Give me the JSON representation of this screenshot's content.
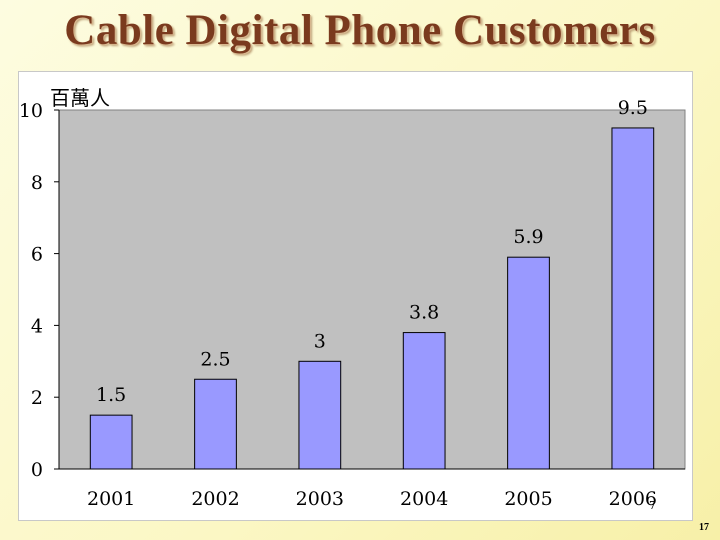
{
  "title": "Cable Digital Phone Customers",
  "page_number": "17",
  "footnote_marker": "7",
  "colors": {
    "title": "#7a3a1e",
    "plot_background": "#c0c0c0",
    "bar_fill": "#9999ff",
    "bar_stroke": "#000000"
  },
  "chart_data": {
    "type": "bar",
    "title": "",
    "unit_label": "百萬人",
    "xlabel": "",
    "ylabel": "",
    "categories": [
      "2001",
      "2002",
      "2003",
      "2004",
      "2005",
      "2006"
    ],
    "values": [
      1.5,
      2.5,
      3,
      3.8,
      5.9,
      9.5
    ],
    "data_labels": [
      "1.5",
      "2.5",
      "3",
      "3.8",
      "5.9",
      "9.5"
    ],
    "ylim": [
      0,
      10
    ],
    "yticks": [
      "0",
      "2",
      "4",
      "6",
      "8",
      "10"
    ],
    "grid": false,
    "legend": "none"
  }
}
